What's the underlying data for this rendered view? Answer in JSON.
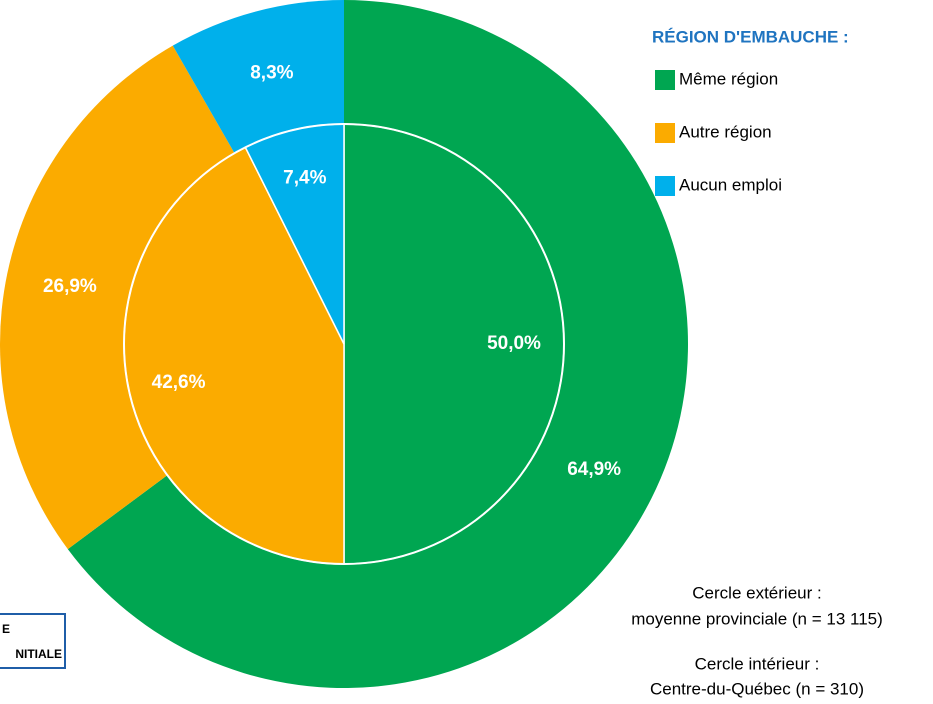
{
  "chart_data": {
    "type": "nested_pie",
    "legend_title": "RÉGION D'EMBAUCHE :",
    "categories": [
      "Même région",
      "Autre région",
      "Aucun emploi"
    ],
    "colors": [
      "#00a651",
      "#fbab00",
      "#00b0eb"
    ],
    "rings": [
      {
        "values": [
          64.9,
          26.9,
          8.3
        ],
        "value_labels": [
          "64,9%",
          "26,9%",
          "8,3%"
        ]
      },
      {
        "values": [
          50.0,
          42.6,
          7.4
        ],
        "value_labels": [
          "50,0%",
          "42,6%",
          "7,4%"
        ]
      }
    ],
    "notes": [
      "Cercle extérieur :",
      "moyenne provinciale (n = 13 115)",
      "Cercle intérieur :",
      "Centre-du-Québec (n = 310)"
    ],
    "box_text": [
      "E",
      "NITIALE"
    ]
  }
}
